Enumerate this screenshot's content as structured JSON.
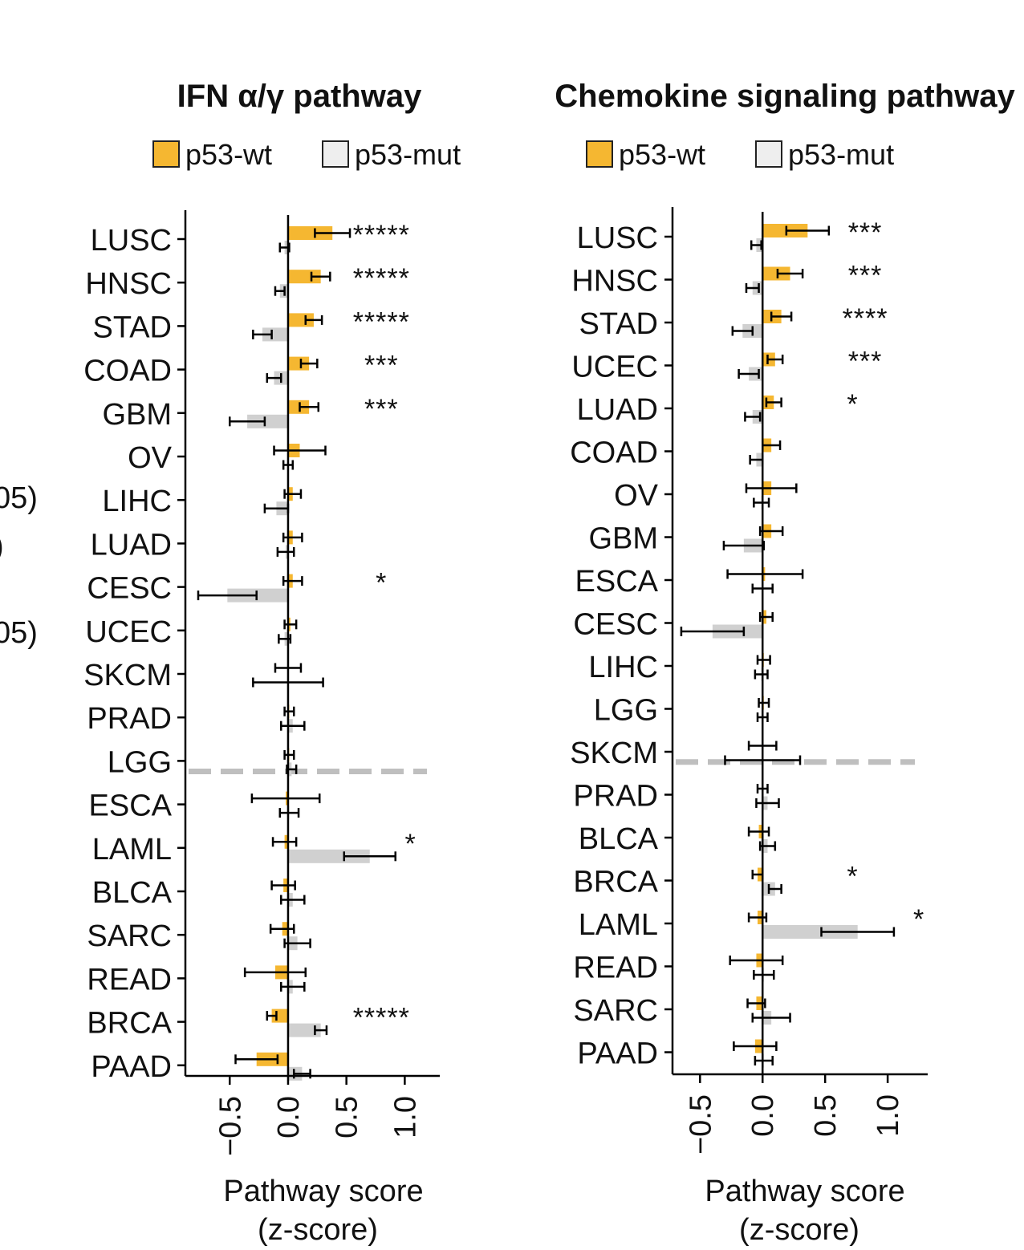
{
  "left_edge_fragments": [
    "05)",
    ")",
    "05)"
  ],
  "colors": {
    "wt": "#F5B731",
    "mut": "#D0D0D0",
    "axis": "#000000",
    "divider": "#BFBFBF"
  },
  "chart_data": [
    {
      "type": "bar",
      "orientation": "horizontal",
      "title": "IFN α/γ pathway",
      "xlabel": "Pathway score",
      "xlabel_unit": "(z-score)",
      "xlim": [
        -0.88,
        1.3
      ],
      "xticks": [
        -0.5,
        0.0,
        0.5,
        1.0
      ],
      "xtick_labels": [
        "−0.5",
        "0.0",
        "0.5",
        "1.0"
      ],
      "legend": {
        "placement": "top",
        "entries": [
          "p53-wt",
          "p53-mut"
        ]
      },
      "divider_after_index": 12,
      "categories": [
        "LUSC",
        "HNSC",
        "STAD",
        "COAD",
        "GBM",
        "OV",
        "LIHC",
        "LUAD",
        "CESC",
        "UCEC",
        "SKCM",
        "PRAD",
        "LGG",
        "ESCA",
        "LAML",
        "BLCA",
        "SARC",
        "READ",
        "BRCA",
        "PAAD"
      ],
      "series": [
        {
          "name": "p53-wt",
          "values": [
            0.38,
            0.28,
            0.22,
            0.18,
            0.18,
            0.1,
            0.04,
            0.04,
            0.04,
            0.02,
            0.0,
            0.01,
            0.01,
            -0.02,
            -0.03,
            -0.04,
            -0.05,
            -0.11,
            -0.14,
            -0.27
          ],
          "err": [
            0.15,
            0.08,
            0.07,
            0.07,
            0.08,
            0.22,
            0.07,
            0.08,
            0.08,
            0.05,
            0.11,
            0.04,
            0.04,
            0.29,
            0.1,
            0.1,
            0.1,
            0.26,
            0.04,
            0.18
          ]
        },
        {
          "name": "p53-mut",
          "values": [
            -0.03,
            -0.07,
            -0.22,
            -0.12,
            -0.35,
            0.0,
            -0.1,
            -0.02,
            -0.52,
            -0.03,
            0.0,
            0.04,
            0.03,
            0.01,
            0.7,
            0.04,
            0.08,
            0.04,
            0.28,
            0.12
          ],
          "err": [
            0.04,
            0.04,
            0.08,
            0.06,
            0.15,
            0.04,
            0.1,
            0.07,
            0.25,
            0.05,
            0.3,
            0.1,
            0.04,
            0.08,
            0.22,
            0.1,
            0.11,
            0.1,
            0.05,
            0.07
          ]
        }
      ],
      "significance": [
        "*****",
        "*****",
        "*****",
        "***",
        "***",
        "",
        "",
        "",
        "*",
        "",
        "",
        "",
        "",
        "",
        "*",
        "",
        "",
        "",
        "*****",
        ""
      ],
      "significance_x": [
        0.8,
        0.8,
        0.8,
        0.8,
        0.8,
        0.8,
        0.8,
        0.8,
        0.8,
        0.8,
        0.8,
        0.8,
        0.8,
        0.8,
        1.05,
        0.8,
        0.8,
        0.8,
        0.8,
        0.8
      ]
    },
    {
      "type": "bar",
      "orientation": "horizontal",
      "title": "Chemokine signaling pathway",
      "xlabel": "Pathway score",
      "xlabel_unit": "(z-score)",
      "xlim": [
        -0.72,
        1.32
      ],
      "xticks": [
        -0.5,
        0.0,
        0.5,
        1.0
      ],
      "xtick_labels": [
        "−0.5",
        "0.0",
        "0.5",
        "1.0"
      ],
      "legend": {
        "placement": "top",
        "entries": [
          "p53-wt",
          "p53-mut"
        ]
      },
      "divider_after_index": 12,
      "categories": [
        "LUSC",
        "HNSC",
        "STAD",
        "UCEC",
        "LUAD",
        "COAD",
        "OV",
        "GBM",
        "ESCA",
        "CESC",
        "LIHC",
        "LGG",
        "SKCM",
        "PRAD",
        "BLCA",
        "BRCA",
        "LAML",
        "READ",
        "SARC",
        "PAAD"
      ],
      "series": [
        {
          "name": "p53-wt",
          "values": [
            0.36,
            0.22,
            0.15,
            0.1,
            0.09,
            0.07,
            0.07,
            0.07,
            0.02,
            0.03,
            0.01,
            0.01,
            0.0,
            0.0,
            -0.03,
            -0.04,
            -0.04,
            -0.05,
            -0.05,
            -0.06
          ],
          "err": [
            0.17,
            0.1,
            0.08,
            0.06,
            0.06,
            0.07,
            0.2,
            0.09,
            0.3,
            0.05,
            0.05,
            0.04,
            0.11,
            0.04,
            0.08,
            0.04,
            0.07,
            0.21,
            0.07,
            0.17
          ]
        },
        {
          "name": "p53-mut",
          "values": [
            -0.05,
            -0.08,
            -0.16,
            -0.11,
            -0.08,
            -0.05,
            -0.01,
            -0.15,
            0.0,
            -0.4,
            -0.01,
            0.0,
            0.0,
            0.04,
            0.04,
            0.1,
            0.76,
            0.01,
            0.07,
            0.01
          ],
          "err": [
            0.04,
            0.05,
            0.08,
            0.08,
            0.06,
            0.05,
            0.06,
            0.16,
            0.08,
            0.25,
            0.05,
            0.04,
            0.3,
            0.09,
            0.06,
            0.05,
            0.29,
            0.08,
            0.15,
            0.07
          ]
        }
      ],
      "significance": [
        "***",
        "***",
        "****",
        "***",
        "*",
        "",
        "",
        "",
        "",
        "",
        "",
        "",
        "",
        "",
        "",
        "*",
        "*",
        "",
        "",
        ""
      ],
      "significance_x": [
        0.82,
        0.82,
        0.82,
        0.82,
        0.72,
        0.82,
        0.82,
        0.82,
        0.82,
        0.82,
        0.82,
        0.82,
        0.82,
        0.82,
        0.82,
        0.72,
        1.25,
        0.82,
        0.82,
        0.82
      ]
    }
  ]
}
